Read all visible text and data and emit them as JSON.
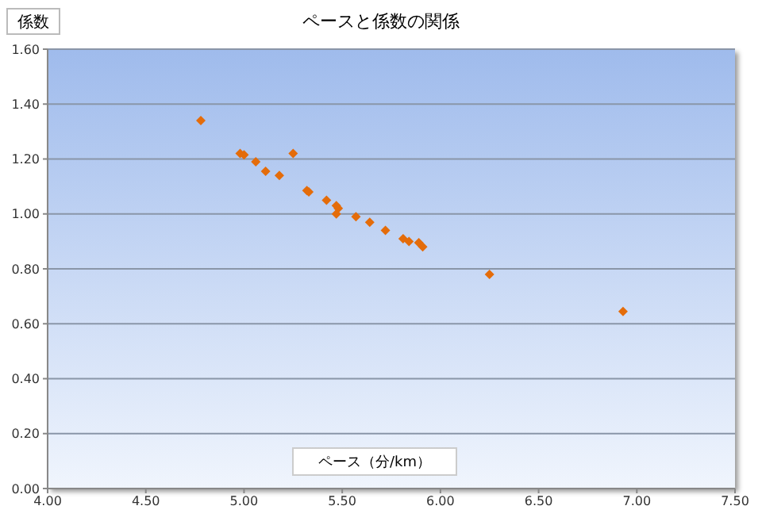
{
  "chart_data": {
    "type": "scatter",
    "title": "ペースと係数の関係",
    "xlabel": "ペース（分/km）",
    "ylabel": "係数",
    "x": [
      4.78,
      4.98,
      5.0,
      5.06,
      5.11,
      5.18,
      5.25,
      5.32,
      5.33,
      5.42,
      5.47,
      5.48,
      5.47,
      5.57,
      5.64,
      5.72,
      5.81,
      5.84,
      5.89,
      5.91,
      6.25,
      6.93
    ],
    "series": [
      {
        "color": "#e46c0a",
        "values": [
          1.34,
          1.22,
          1.215,
          1.19,
          1.155,
          1.14,
          1.22,
          1.085,
          1.08,
          1.05,
          1.03,
          1.02,
          1.0,
          0.99,
          0.97,
          0.94,
          0.91,
          0.9,
          0.895,
          0.88,
          0.78,
          0.645
        ]
      }
    ],
    "marker": "diamond",
    "grid": "y",
    "legend": false,
    "xlim": [
      4,
      7.5
    ],
    "xticks": [
      {
        "value": 4,
        "label": "4.00"
      },
      {
        "value": 4.5,
        "label": "4.50"
      },
      {
        "value": 5,
        "label": "5.00"
      },
      {
        "value": 5.5,
        "label": "5.50"
      },
      {
        "value": 6,
        "label": "6.00"
      },
      {
        "value": 6.5,
        "label": "6.50"
      },
      {
        "value": 7,
        "label": "7.00"
      },
      {
        "value": 7.5,
        "label": "7.50"
      }
    ],
    "ylim": [
      0,
      1.6
    ],
    "yticks": [
      {
        "value": 0,
        "label": "0.00"
      },
      {
        "value": 0.2,
        "label": "0.20"
      },
      {
        "value": 0.4,
        "label": "0.40"
      },
      {
        "value": 0.6,
        "label": "0.60"
      },
      {
        "value": 0.8,
        "label": "0.80"
      },
      {
        "value": 1,
        "label": "1.00"
      },
      {
        "value": 1.2,
        "label": "1.20"
      },
      {
        "value": 1.4,
        "label": "1.40"
      },
      {
        "value": 1.6,
        "label": "1.60"
      }
    ]
  }
}
